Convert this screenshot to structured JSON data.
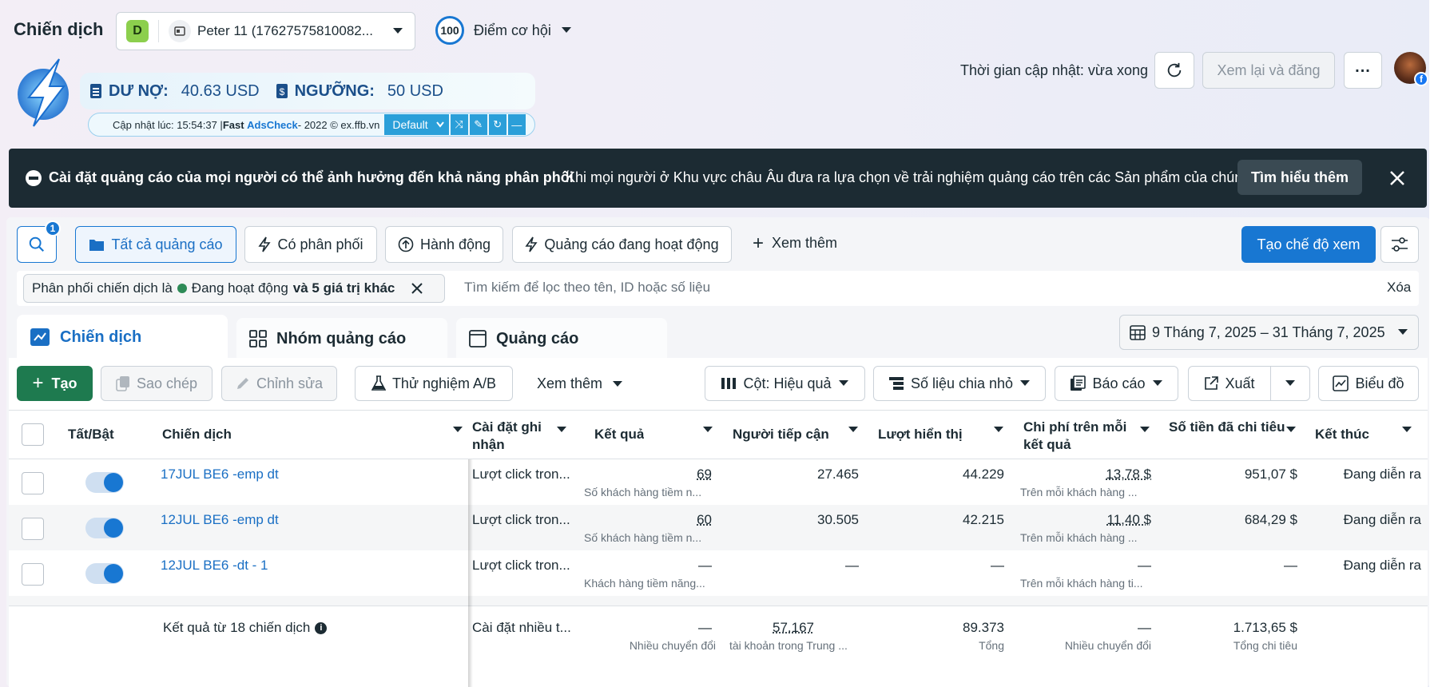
{
  "header": {
    "title": "Chiến dịch",
    "account_badge": "D",
    "account_name": "Peter 11 (17627575810082...",
    "score_value": "100",
    "score_label": "Điểm cơ hội",
    "update_text": "Thời gian cập nhật: vừa xong",
    "review_button": "Xem lại và đăng",
    "more_icon": "ellipsis-icon"
  },
  "extension": {
    "debt_label": "DƯ NỢ:",
    "debt_value": "40.63 USD",
    "threshold_label": "NGƯỠNG:",
    "threshold_value": "50 USD",
    "footer_prefix": "Cập nhật lúc: 15:54:37 | ",
    "footer_brand1": "Fast",
    "footer_brand2": "AdsCheck",
    "footer_suffix": " - 2022 © ex.ffb.vn",
    "select_value": "Default"
  },
  "banner": {
    "title": "Cài đặt quảng cáo của mọi người có thể ảnh hưởng đến khả năng phân phối",
    "text": "Khi mọi người ở Khu vực châu Âu đưa ra lựa chọn về trải nghiệm quảng cáo trên các Sản phẩm của chún...",
    "button": "Tìm hiểu thêm"
  },
  "filters": {
    "search_badge": "1",
    "tabs": [
      "Tất cả quảng cáo",
      "Có phân phối",
      "Hành động",
      "Quảng cáo đang hoạt động"
    ],
    "more": "Xem thêm",
    "create_view": "Tạo chế độ xem"
  },
  "filter_bar": {
    "chip_prefix": "Phân phối chiến dịch là",
    "chip_status": "Đang hoạt động",
    "chip_suffix": "và 5 giá trị khác",
    "placeholder": "Tìm kiếm để lọc theo tên, ID hoặc số liệu",
    "clear": "Xóa"
  },
  "level_tabs": [
    "Chiến dịch",
    "Nhóm quảng cáo",
    "Quảng cáo"
  ],
  "date_range": "9 Tháng 7, 2025 – 31 Tháng 7, 2025",
  "toolbar": {
    "create": "Tạo",
    "copy": "Sao chép",
    "edit": "Chỉnh sửa",
    "ab_test": "Thử nghiệm A/B",
    "more": "Xem thêm",
    "columns": "Cột: Hiệu quả",
    "breakdown": "Số liệu chia nhỏ",
    "reports": "Báo cáo",
    "export": "Xuất",
    "chart": "Biểu đồ"
  },
  "table": {
    "headers": {
      "toggle": "Tất/Bật",
      "campaign": "Chiến dịch",
      "attribution": "Cài đặt ghi nhận",
      "results": "Kết quả",
      "reach": "Người tiếp cận",
      "impressions": "Lượt hiển thị",
      "cost_per_result": "Chi phí trên mỗi kết quả",
      "amount_spent": "Số tiền đã chi tiêu",
      "ends": "Kết thúc"
    },
    "rows": [
      {
        "name": "17JUL BE6 -emp dt",
        "attribution": "Lượt click tron...",
        "results": "69",
        "results_sub": "Số khách hàng tiềm n...",
        "reach": "27.465",
        "impressions": "44.229",
        "cpr": "13,78 $",
        "cpr_sub": "Trên mỗi khách hàng ...",
        "spent": "951,07 $",
        "ends": "Đang diễn ra"
      },
      {
        "name": "12JUL BE6 -emp dt",
        "attribution": "Lượt click tron...",
        "results": "60",
        "results_sub": "Số khách hàng tiềm n...",
        "reach": "30.505",
        "impressions": "42.215",
        "cpr": "11,40 $",
        "cpr_sub": "Trên mỗi khách hàng ...",
        "spent": "684,29 $",
        "ends": "Đang diễn ra"
      },
      {
        "name": "12JUL BE6 -dt - 1",
        "attribution": "Lượt click tron...",
        "results": "—",
        "results_sub": "Khách hàng tiềm năng...",
        "reach": "—",
        "impressions": "—",
        "cpr": "—",
        "cpr_sub": "Trên mỗi khách hàng ti...",
        "spent": "—",
        "ends": "Đang diễn ra"
      }
    ],
    "summary": {
      "label": "Kết quả từ 18 chiến dịch",
      "attribution": "Cài đặt nhiều t...",
      "results": "—",
      "results_sub": "Nhiều chuyển đổi",
      "reach": "57.167",
      "reach_sub": "tài khoản trong Trung ...",
      "impressions": "89.373",
      "impressions_sub": "Tổng",
      "cpr": "—",
      "cpr_sub": "Nhiều chuyển đổi",
      "spent": "1.713,65 $",
      "spent_sub": "Tổng chi tiêu"
    }
  }
}
